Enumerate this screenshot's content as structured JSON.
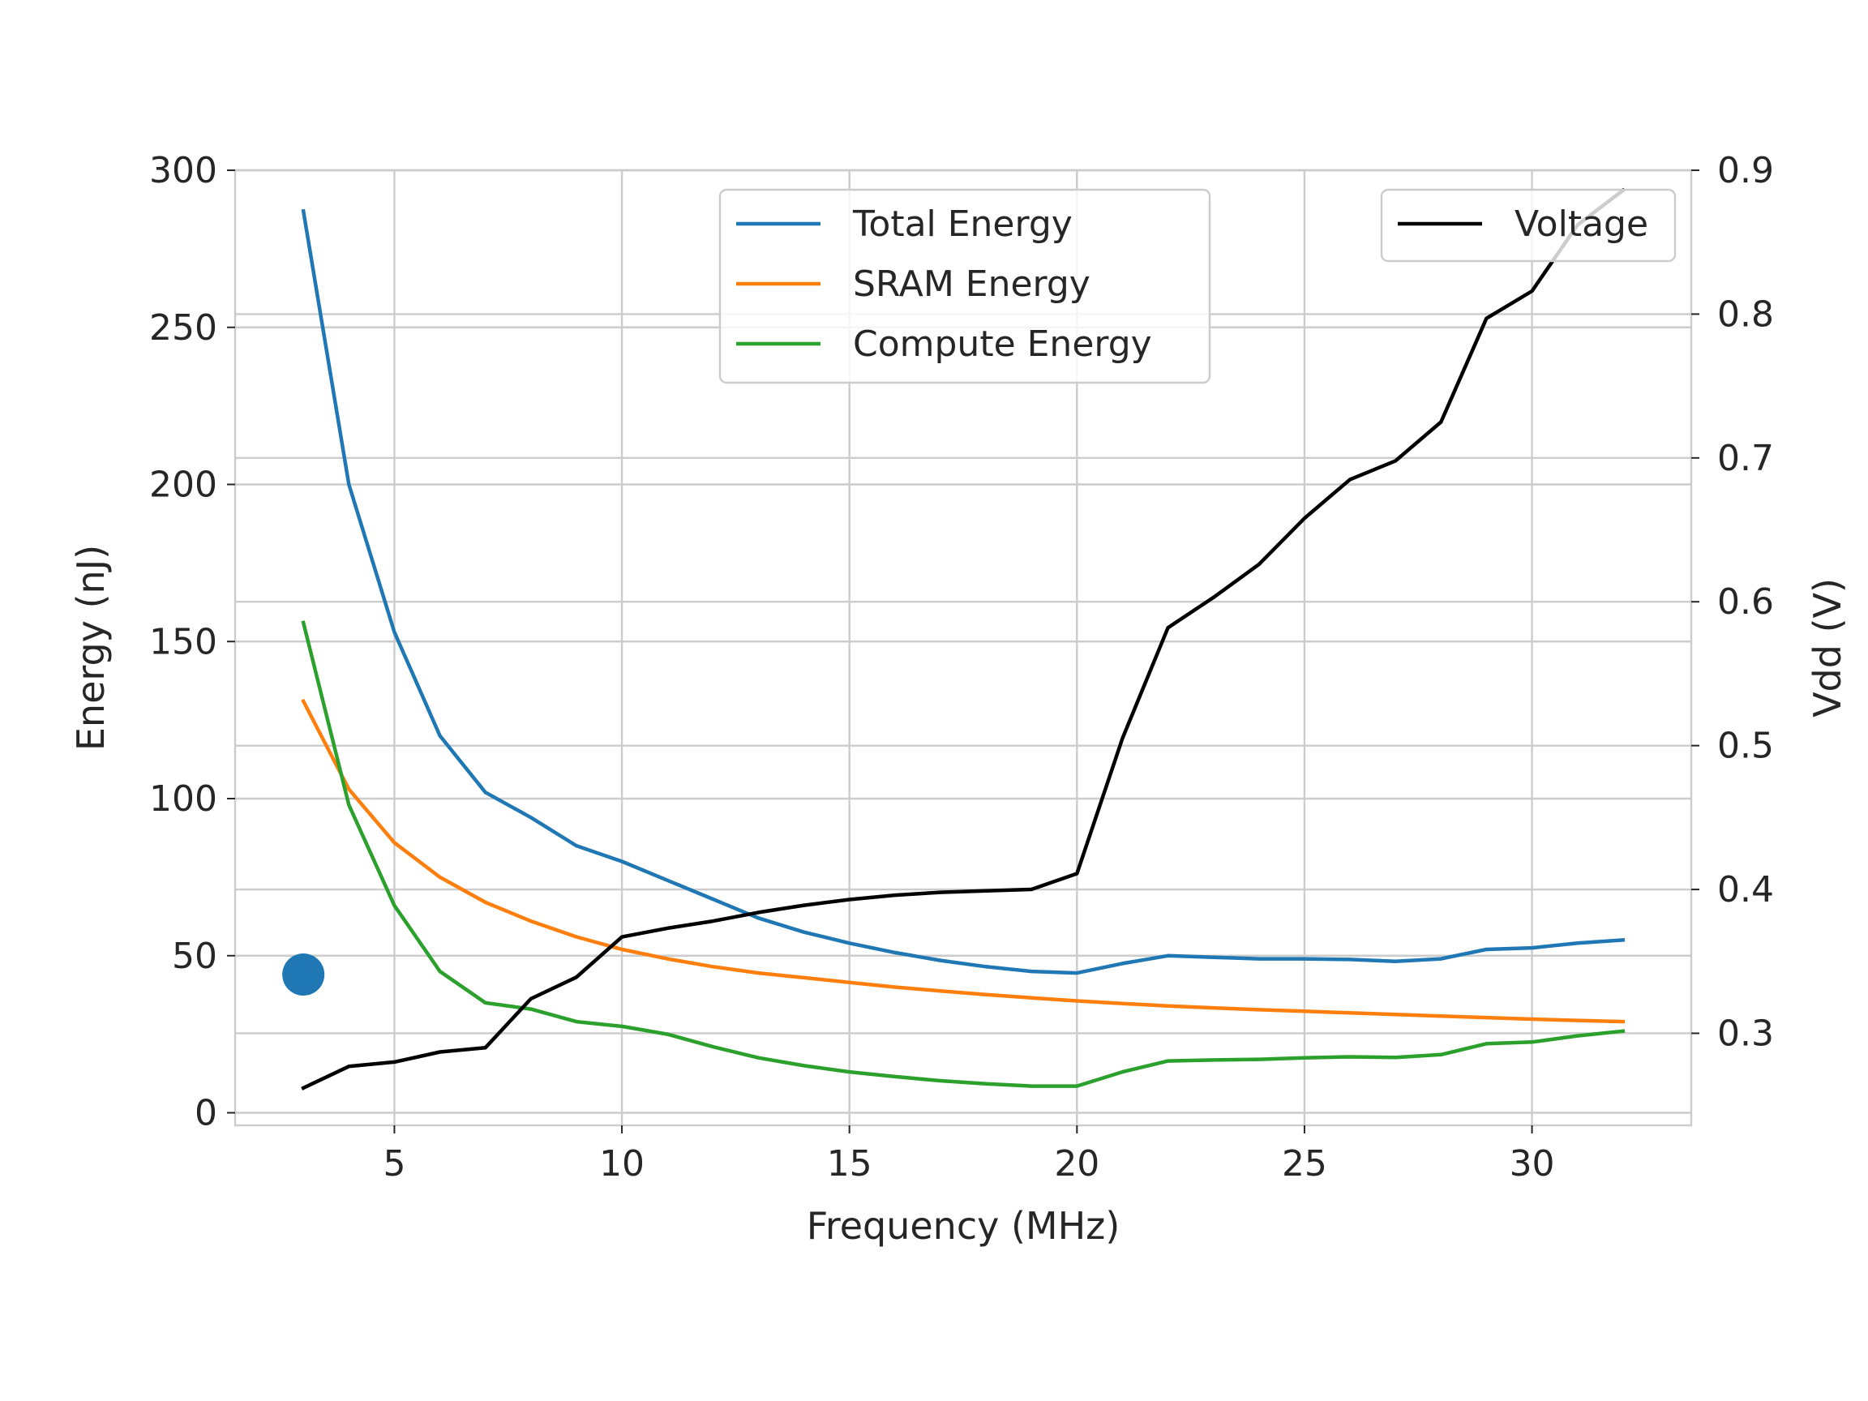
{
  "chart_data": {
    "type": "line",
    "title": "",
    "xlabel": "Frequency (MHz)",
    "ylabel": "Energy (nJ)",
    "y2label": "Vdd (V)",
    "xlim": [
      1.5,
      33.5
    ],
    "ylim": [
      -4,
      300
    ],
    "y2lim": [
      0.236,
      0.9
    ],
    "xticks": [
      5,
      10,
      15,
      20,
      25,
      30
    ],
    "yticks": [
      0,
      50,
      100,
      150,
      200,
      250,
      300
    ],
    "y2ticks": [
      0.3,
      0.4,
      0.5,
      0.6,
      0.7,
      0.8,
      0.9
    ],
    "grid": true,
    "x": [
      3,
      4,
      5,
      6,
      7,
      8,
      9,
      10,
      11,
      12,
      13,
      14,
      15,
      16,
      17,
      18,
      19,
      20,
      21,
      22,
      23,
      24,
      25,
      26,
      27,
      28,
      29,
      30,
      31,
      32
    ],
    "series": [
      {
        "name": "Total Energy",
        "axis": "left",
        "color": "#1f77b4",
        "values": [
          287,
          200,
          153,
          120,
          102,
          94,
          85,
          80,
          74,
          68,
          62,
          57.5,
          54,
          51,
          48.5,
          46.5,
          45,
          44.5,
          47.5,
          50,
          49.5,
          49,
          49,
          48.8,
          48.2,
          49,
          52,
          52.5,
          54,
          55
        ]
      },
      {
        "name": "SRAM Energy",
        "axis": "left",
        "color": "#ff7f0e",
        "values": [
          131,
          103,
          86,
          75,
          67,
          61,
          56,
          52,
          49,
          46.5,
          44.5,
          43,
          41.5,
          40,
          38.8,
          37.6,
          36.6,
          35.6,
          34.8,
          34,
          33.4,
          32.8,
          32.3,
          31.8,
          31.3,
          30.8,
          30.3,
          29.8,
          29.4,
          29
        ]
      },
      {
        "name": "Compute Energy",
        "axis": "left",
        "color": "#2ca02c",
        "values": [
          156,
          98,
          66,
          45,
          35,
          33,
          29,
          27.5,
          25,
          21,
          17.5,
          15,
          13,
          11.5,
          10.2,
          9.2,
          8.5,
          8.5,
          13,
          16.5,
          16.8,
          17,
          17.5,
          17.8,
          17.6,
          18.5,
          22,
          22.5,
          24.5,
          26
        ]
      },
      {
        "name": "Voltage",
        "axis": "right",
        "color": "#000000",
        "values": [
          0.262,
          0.277,
          0.28,
          0.287,
          0.29,
          0.324,
          0.339,
          0.367,
          0.373,
          0.378,
          0.384,
          0.389,
          0.393,
          0.396,
          0.398,
          0.399,
          0.4,
          0.411,
          0.505,
          0.582,
          0.603,
          0.626,
          0.658,
          0.685,
          0.698,
          0.725,
          0.797,
          0.816,
          0.862,
          0.886
        ]
      }
    ],
    "marker": {
      "x": 3,
      "y": 44,
      "color": "#1f77b4"
    },
    "legends": [
      {
        "placement": "top-center",
        "entries": [
          "Total Energy",
          "SRAM Energy",
          "Compute Energy"
        ]
      },
      {
        "placement": "top-right",
        "entries": [
          "Voltage"
        ]
      }
    ]
  }
}
